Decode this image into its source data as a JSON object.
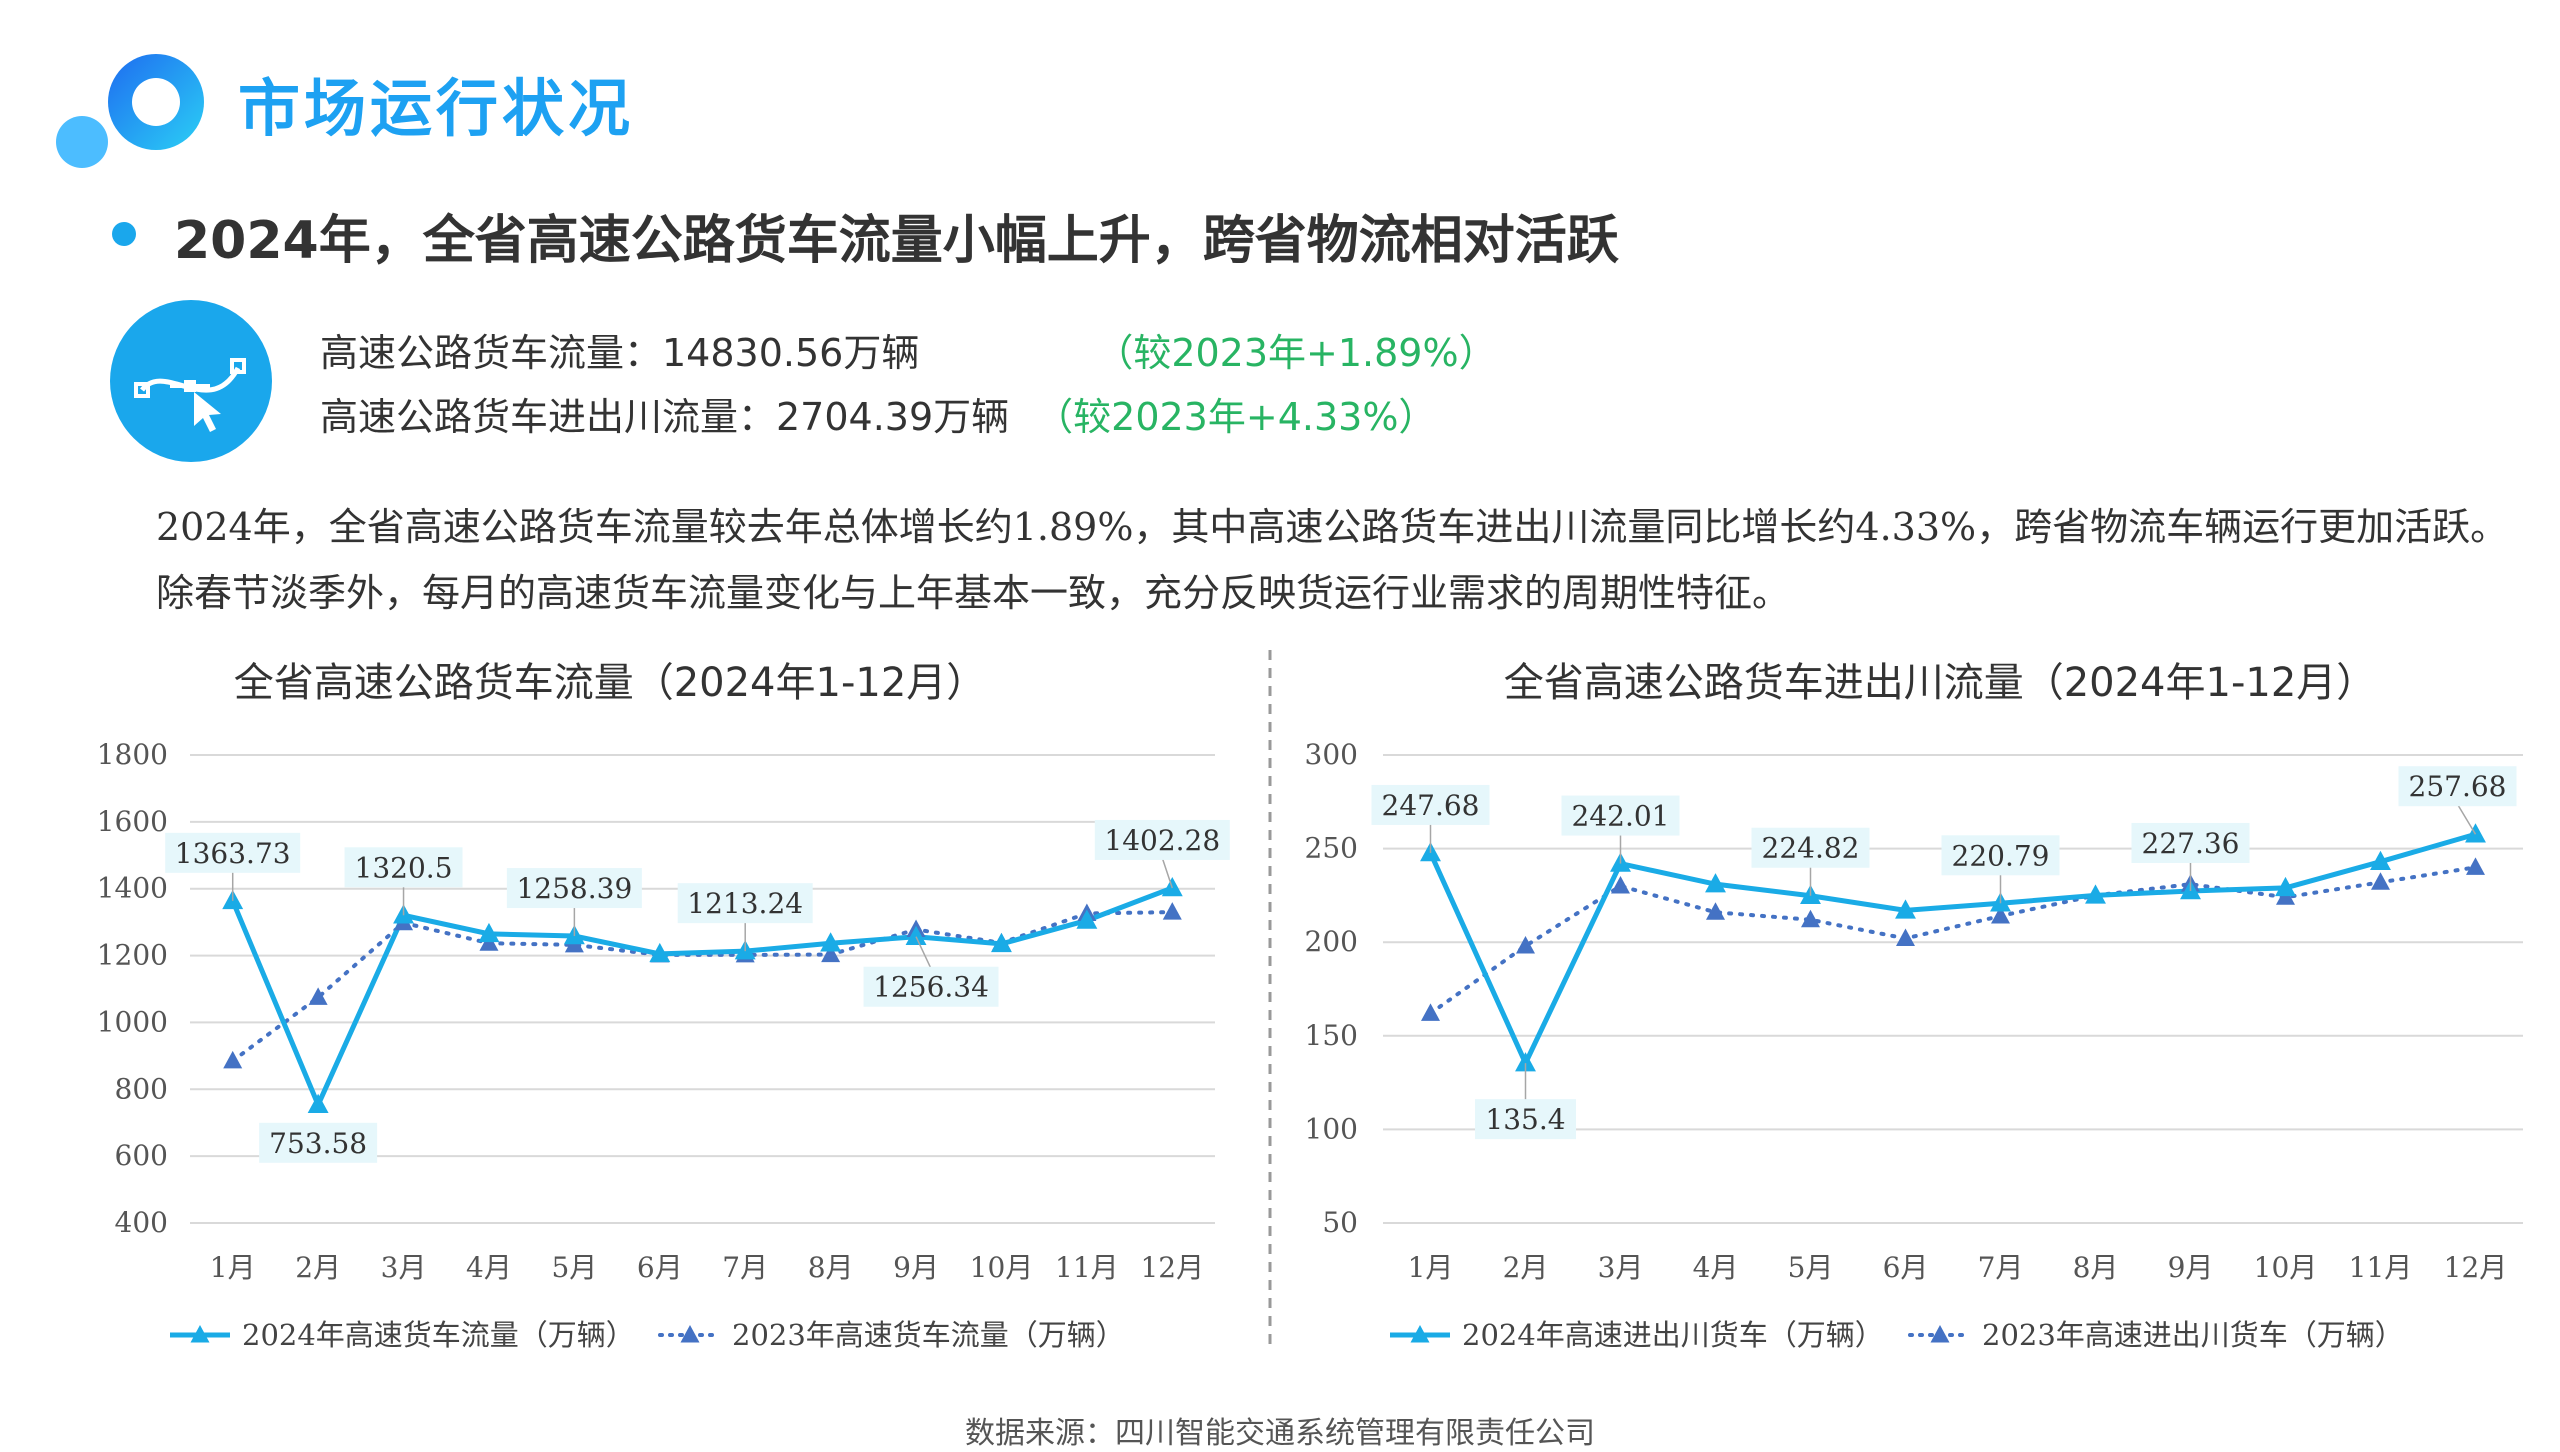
{
  "header": {
    "title": "市场运行状况",
    "subtitle": "2024年，全省高速公路货车流量小幅上升，跨省物流相对活跃"
  },
  "stats": {
    "line1_label": "高速公路货车流量：14830.56万辆",
    "line1_compare": "（较2023年+1.89%）",
    "line2_label": "高速公路货车进出川流量：2704.39万辆",
    "line2_compare": "（较2023年+4.33%）",
    "icon": "bezier-pen-icon"
  },
  "paragraph": "2024年，全省高速公路货车流量较去年总体增长约1.89%，其中高速公路货车进出川流量同比增长约4.33%，跨省物流车辆运行更加活跃。除春节淡季外，每月的高速货车流量变化与上年基本一致，充分反映货运行业需求的周期性特征。",
  "source": "数据来源：四川智能交通系统管理有限责任公司",
  "colors": {
    "accent": "#1da1f2",
    "series_2024": "#1aabe6",
    "series_2023": "#4472c4",
    "positive": "#28b463",
    "label_bg": "#e6f7fb"
  },
  "chart_data": [
    {
      "type": "line",
      "title": "全省高速公路货车流量（2024年1-12月）",
      "categories": [
        "1月",
        "2月",
        "3月",
        "4月",
        "5月",
        "6月",
        "7月",
        "8月",
        "9月",
        "10月",
        "11月",
        "12月"
      ],
      "ylim": [
        400,
        1800
      ],
      "yticks": [
        1800,
        1600,
        1400,
        1200,
        1000,
        800,
        600,
        400
      ],
      "grid": true,
      "legend": "bottom",
      "series": [
        {
          "name": "2024年高速货车流量（万辆）",
          "style": "solid",
          "values": [
            1363.73,
            753.58,
            1320.5,
            1265,
            1258.39,
            1205,
            1213.24,
            1237,
            1256.34,
            1235,
            1305,
            1402.28
          ]
        },
        {
          "name": "2023年高速货车流量（万辆）",
          "style": "dotted",
          "values": [
            885,
            1075,
            1298,
            1237,
            1232,
            1202,
            1202,
            1203,
            1278,
            1238,
            1326,
            1330
          ]
        }
      ],
      "labels": [
        {
          "i": 0,
          "series": 0,
          "text": "1363.73"
        },
        {
          "i": 1,
          "series": 0,
          "text": "753.58"
        },
        {
          "i": 2,
          "series": 0,
          "text": "1320.5"
        },
        {
          "i": 4,
          "series": 0,
          "text": "1258.39"
        },
        {
          "i": 6,
          "series": 0,
          "text": "1213.24"
        },
        {
          "i": 8,
          "series": 0,
          "text": "1256.34"
        },
        {
          "i": 11,
          "series": 0,
          "text": "1402.28"
        }
      ]
    },
    {
      "type": "line",
      "title": "全省高速公路货车进出川流量（2024年1-12月）",
      "categories": [
        "1月",
        "2月",
        "3月",
        "4月",
        "5月",
        "6月",
        "7月",
        "8月",
        "9月",
        "10月",
        "11月",
        "12月"
      ],
      "ylim": [
        50,
        300
      ],
      "yticks": [
        300,
        250,
        200,
        150,
        100,
        50
      ],
      "grid": true,
      "legend": "bottom",
      "series": [
        {
          "name": "2024年高速进出川货车（万辆）",
          "style": "solid",
          "values": [
            247.68,
            135.4,
            242.01,
            231,
            224.82,
            217,
            220.79,
            225,
            227.36,
            229,
            243,
            257.68
          ]
        },
        {
          "name": "2023年高速进出川货车（万辆）",
          "style": "dotted",
          "values": [
            162,
            198,
            230,
            216,
            212,
            202,
            214,
            225,
            231,
            224,
            232,
            240
          ]
        }
      ],
      "labels": [
        {
          "i": 0,
          "series": 0,
          "text": "247.68"
        },
        {
          "i": 1,
          "series": 0,
          "text": "135.4"
        },
        {
          "i": 2,
          "series": 0,
          "text": "242.01"
        },
        {
          "i": 4,
          "series": 0,
          "text": "224.82"
        },
        {
          "i": 6,
          "series": 0,
          "text": "220.79"
        },
        {
          "i": 8,
          "series": 0,
          "text": "227.36"
        },
        {
          "i": 11,
          "series": 0,
          "text": "257.68"
        }
      ]
    }
  ]
}
